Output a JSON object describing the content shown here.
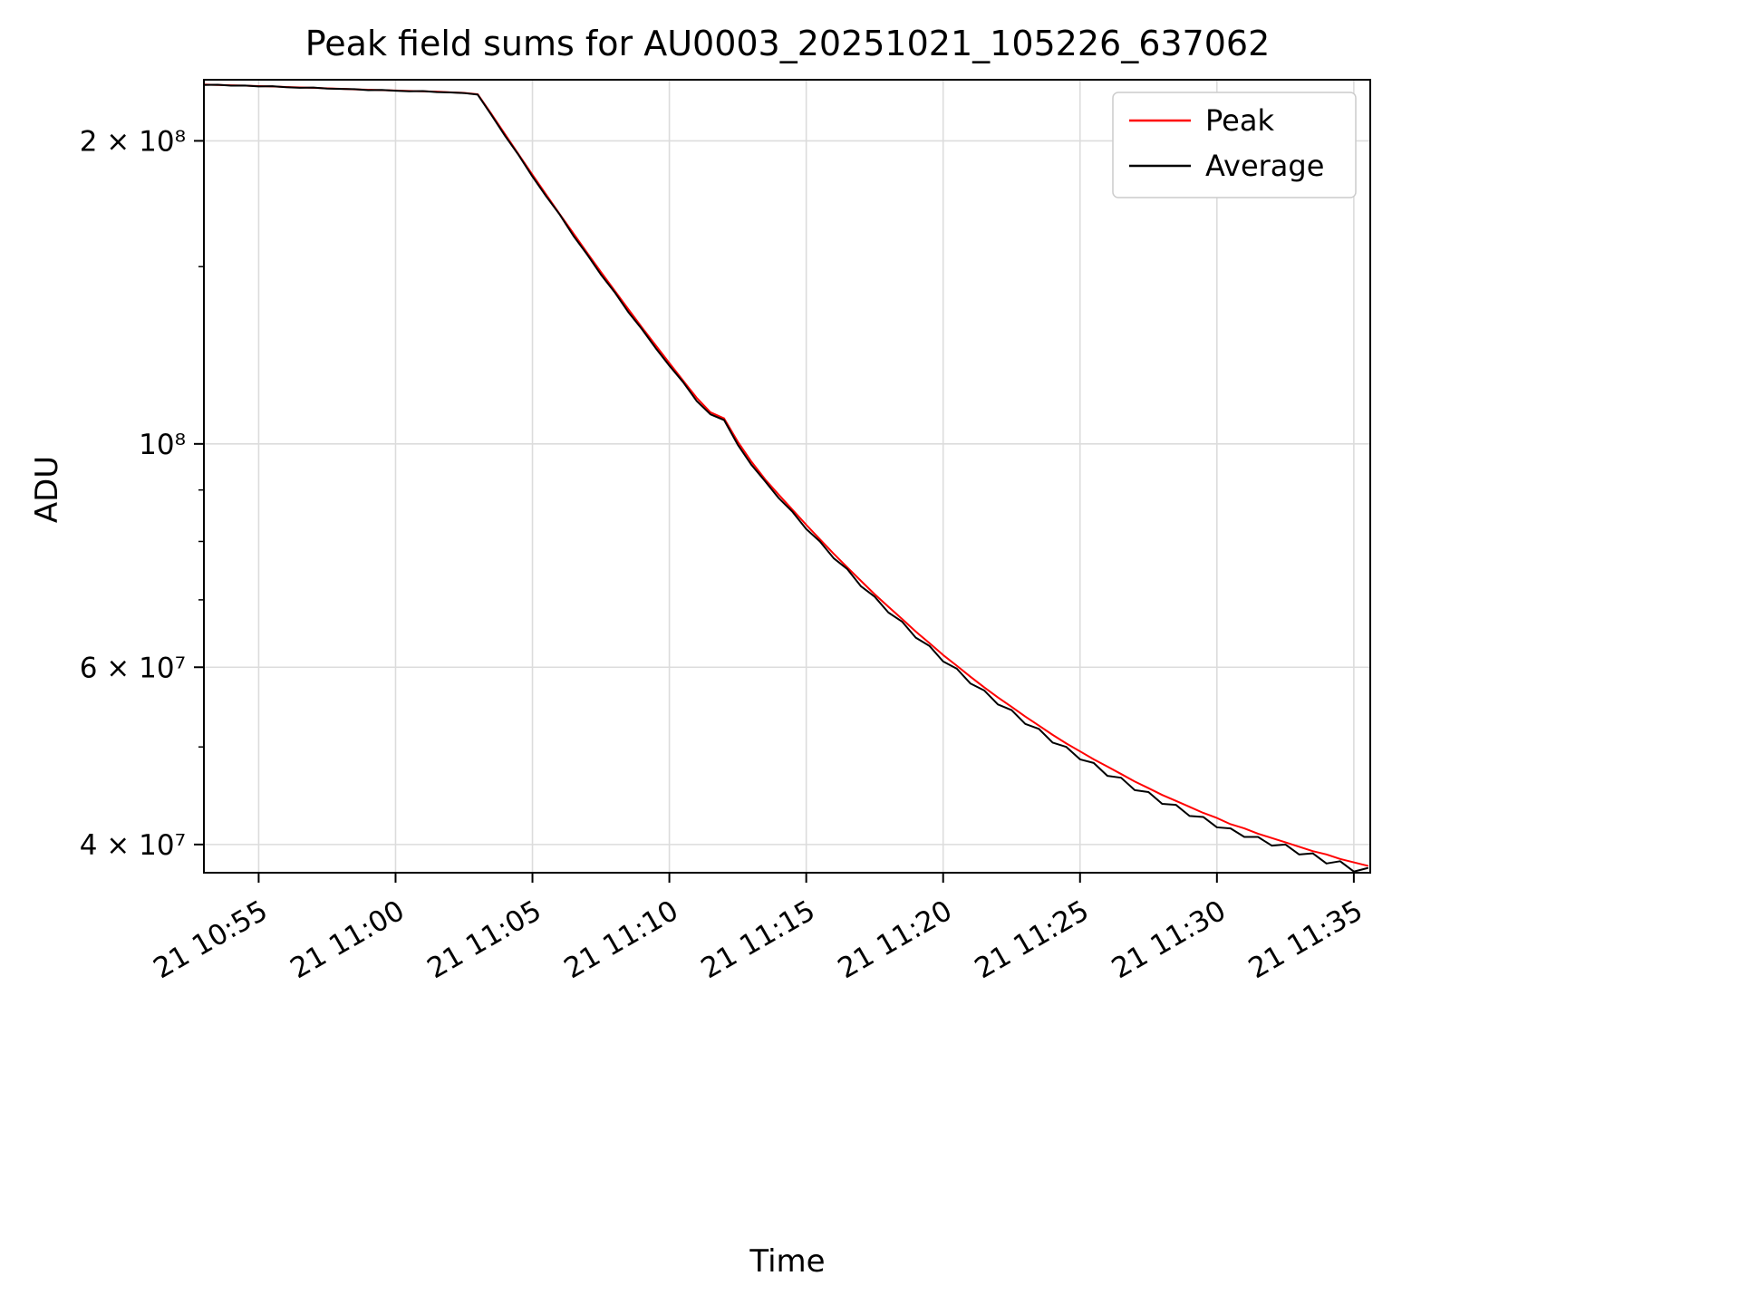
{
  "chart_data": {
    "type": "line",
    "title": "Peak field sums for AU0003_20251021_105226_637062",
    "xlabel": "Time",
    "ylabel": "ADU",
    "y_scale": "log",
    "values_unit": "1e6 ADU",
    "x_unit": "minutes after 21 10:52",
    "x_range": [
      1.0,
      43.6
    ],
    "y_range": [
      37.5,
      230
    ],
    "grid": true,
    "grid_color": "#dcdcdc",
    "x": [
      1,
      1.5,
      2,
      2.5,
      3,
      3.5,
      4,
      4.5,
      5,
      5.5,
      6,
      6.5,
      7,
      7.5,
      8,
      8.5,
      9,
      9.5,
      10,
      10.5,
      11,
      11.5,
      12,
      12.5,
      13,
      13.5,
      14,
      14.5,
      15,
      15.5,
      16,
      16.5,
      17,
      17.5,
      18,
      18.5,
      19,
      19.5,
      20,
      20.5,
      21,
      21.5,
      22,
      22.5,
      23,
      23.5,
      24,
      24.5,
      25,
      25.5,
      26,
      26.5,
      27,
      27.5,
      28,
      28.5,
      29,
      29.5,
      30,
      30.5,
      31,
      31.5,
      32,
      32.5,
      33,
      33.5,
      34,
      34.5,
      35,
      35.5,
      36,
      36.5,
      37,
      37.5,
      38,
      38.5,
      39,
      39.5,
      40,
      40.5,
      41,
      41.5,
      42,
      42.5,
      43,
      43.5
    ],
    "series": [
      {
        "name": "Peak",
        "color": "#ff0000",
        "values": [
          227.5,
          227.3,
          227.1,
          226.9,
          226.7,
          226.5,
          226.2,
          226.0,
          225.8,
          225.5,
          225.3,
          225.0,
          224.8,
          224.6,
          224.4,
          224.2,
          224.0,
          223.8,
          223.5,
          223.2,
          222.5,
          212.7,
          203.0,
          193.8,
          185.1,
          176.9,
          169.1,
          161.8,
          154.8,
          148.2,
          142.0,
          136.1,
          130.5,
          125.3,
          120.3,
          115.6,
          111.1,
          107.5,
          106.0,
          100.5,
          96.0,
          92.2,
          89.0,
          86.0,
          83.1,
          80.4,
          77.8,
          75.4,
          73.1,
          70.9,
          68.9,
          67.0,
          65.1,
          63.4,
          61.7,
          60.2,
          58.7,
          57.3,
          56.0,
          54.8,
          53.6,
          52.5,
          51.4,
          50.4,
          49.5,
          48.6,
          47.8,
          47.0,
          46.2,
          45.5,
          44.8,
          44.2,
          43.6,
          43.0,
          42.5,
          41.9,
          41.5,
          41.0,
          40.6,
          40.2,
          39.8,
          39.4,
          39.1,
          38.7,
          38.4,
          38.1
        ]
      },
      {
        "name": "Average",
        "color": "#000000",
        "values": [
          227.3,
          227.4,
          226.9,
          227.0,
          226.5,
          226.6,
          226.1,
          225.8,
          225.9,
          225.4,
          225.2,
          225.1,
          224.6,
          224.7,
          224.3,
          224.0,
          224.1,
          223.6,
          223.4,
          223.1,
          222.3,
          212.2,
          202.3,
          193.5,
          184.3,
          176.2,
          168.9,
          160.9,
          154.2,
          147.3,
          141.5,
          135.2,
          130.0,
          124.5,
          119.6,
          115.2,
          110.3,
          107.0,
          105.6,
          99.8,
          95.3,
          91.8,
          88.3,
          85.6,
          82.3,
          80.0,
          77.0,
          75.1,
          72.2,
          70.5,
          68.0,
          66.6,
          64.2,
          63.0,
          60.8,
          59.8,
          57.8,
          56.9,
          55.1,
          54.4,
          52.7,
          52.1,
          50.5,
          50.0,
          48.6,
          48.2,
          46.8,
          46.6,
          45.3,
          45.1,
          43.9,
          43.8,
          42.7,
          42.6,
          41.6,
          41.5,
          40.7,
          40.7,
          39.9,
          40.0,
          39.1,
          39.2,
          38.3,
          38.5,
          37.6,
          37.9
        ]
      }
    ],
    "x_ticks": [
      {
        "t": 3,
        "label": "21 10:55"
      },
      {
        "t": 8,
        "label": "21 11:00"
      },
      {
        "t": 13,
        "label": "21 11:05"
      },
      {
        "t": 18,
        "label": "21 11:10"
      },
      {
        "t": 23,
        "label": "21 11:15"
      },
      {
        "t": 28,
        "label": "21 11:20"
      },
      {
        "t": 33,
        "label": "21 11:25"
      },
      {
        "t": 38,
        "label": "21 11:30"
      },
      {
        "t": 43,
        "label": "21 11:35"
      }
    ],
    "y_ticks": [
      {
        "v": 200,
        "label": "2 × 10⁸"
      },
      {
        "v": 100,
        "label": "10⁸"
      },
      {
        "v": 60,
        "label": "6 × 10⁷"
      },
      {
        "v": 40,
        "label": "4 × 10⁷"
      }
    ],
    "y_minor_ticks": [
      50,
      70,
      80,
      90,
      150
    ],
    "legend": {
      "position": "top-right",
      "entries": [
        "Peak",
        "Average"
      ]
    }
  }
}
